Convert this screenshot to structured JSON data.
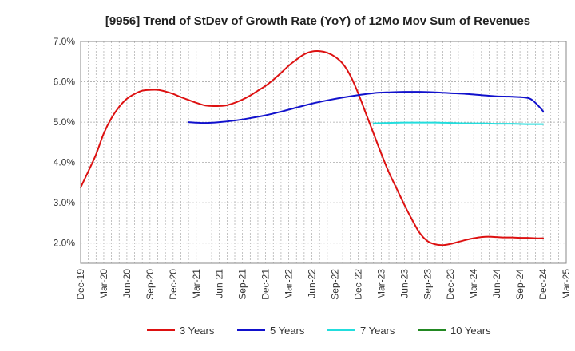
{
  "chart_data": {
    "type": "line",
    "title": "[9956]  Trend of StDev of Growth Rate (YoY) of 12Mo Mov Sum of Revenues",
    "xlabel": "",
    "ylabel": "",
    "ylim": [
      1.5,
      7.0
    ],
    "y_ticks": [
      "2.0%",
      "3.0%",
      "4.0%",
      "5.0%",
      "6.0%",
      "7.0%"
    ],
    "y_tick_values": [
      2.0,
      3.0,
      4.0,
      5.0,
      6.0,
      7.0
    ],
    "x_tick_labels": [
      "Dec-19",
      "Mar-20",
      "Jun-20",
      "Sep-20",
      "Dec-20",
      "Mar-21",
      "Jun-21",
      "Sep-21",
      "Dec-21",
      "Mar-22",
      "Jun-22",
      "Sep-22",
      "Dec-22",
      "Mar-23",
      "Jun-23",
      "Sep-23",
      "Dec-23",
      "Mar-24",
      "Jun-24",
      "Sep-24",
      "Dec-24",
      "Mar-25"
    ],
    "x_months_from_start": [
      0,
      3,
      6,
      9,
      12,
      15,
      18,
      21,
      24,
      27,
      30,
      33,
      36,
      39,
      42,
      45,
      48,
      51,
      54,
      57,
      60,
      63
    ],
    "grid": true,
    "legend_position": "bottom",
    "series": [
      {
        "name": "3 Years",
        "color": "#dd1111",
        "x": [
          0,
          1,
          2,
          3,
          4,
          5,
          6,
          7,
          8,
          9,
          10,
          11,
          12,
          13,
          14,
          15,
          16,
          17,
          18,
          19,
          20,
          21,
          22,
          23,
          24,
          25,
          26,
          27,
          28,
          29,
          30,
          31,
          32,
          33,
          34,
          35,
          36,
          37,
          38,
          39,
          40,
          41,
          42,
          43,
          44,
          45,
          46,
          47,
          48,
          49,
          50,
          51,
          52,
          53,
          54,
          55,
          56,
          57,
          58,
          59,
          60
        ],
        "values": [
          3.38,
          3.78,
          4.2,
          4.72,
          5.1,
          5.38,
          5.58,
          5.7,
          5.78,
          5.8,
          5.8,
          5.76,
          5.7,
          5.62,
          5.55,
          5.48,
          5.42,
          5.4,
          5.4,
          5.42,
          5.48,
          5.56,
          5.66,
          5.78,
          5.9,
          6.05,
          6.22,
          6.4,
          6.55,
          6.68,
          6.75,
          6.76,
          6.72,
          6.62,
          6.45,
          6.15,
          5.72,
          5.22,
          4.72,
          4.22,
          3.75,
          3.35,
          2.95,
          2.58,
          2.25,
          2.05,
          1.97,
          1.95,
          1.98,
          2.03,
          2.08,
          2.12,
          2.15,
          2.16,
          2.15,
          2.14,
          2.14,
          2.13,
          2.13,
          2.12,
          2.12
        ]
      },
      {
        "name": "5 Years",
        "color": "#1111cc",
        "x": [
          14,
          16,
          18,
          20,
          22,
          24,
          26,
          28,
          30,
          32,
          34,
          36,
          38,
          40,
          42,
          44,
          46,
          48,
          50,
          52,
          54,
          56,
          58,
          59,
          60
        ],
        "values": [
          5.0,
          4.98,
          5.0,
          5.04,
          5.1,
          5.17,
          5.26,
          5.36,
          5.46,
          5.54,
          5.61,
          5.67,
          5.72,
          5.74,
          5.75,
          5.75,
          5.74,
          5.72,
          5.7,
          5.67,
          5.64,
          5.63,
          5.6,
          5.48,
          5.27
        ]
      },
      {
        "name": "7 Years",
        "color": "#22dddd",
        "x": [
          38,
          40,
          42,
          44,
          46,
          48,
          50,
          52,
          54,
          56,
          58,
          60
        ],
        "values": [
          4.97,
          4.98,
          4.99,
          4.99,
          4.99,
          4.98,
          4.97,
          4.97,
          4.96,
          4.96,
          4.95,
          4.95
        ]
      },
      {
        "name": "10 Years",
        "color": "#228822",
        "x": [],
        "values": []
      }
    ]
  }
}
